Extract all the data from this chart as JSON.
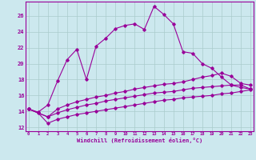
{
  "xlabel": "Windchill (Refroidissement éolien,°C)",
  "background_color": "#cce8ee",
  "grid_color": "#aacccc",
  "line_color": "#990099",
  "x_ticks": [
    0,
    1,
    2,
    3,
    4,
    5,
    6,
    7,
    8,
    9,
    10,
    11,
    12,
    13,
    14,
    15,
    16,
    17,
    18,
    19,
    20,
    21,
    22,
    23
  ],
  "ylim": [
    11.5,
    27.8
  ],
  "xlim": [
    -0.3,
    23.3
  ],
  "y_ticks": [
    12,
    14,
    16,
    18,
    20,
    22,
    24,
    26
  ],
  "line1_x": [
    0,
    1,
    2,
    3,
    4,
    5,
    6,
    7,
    8,
    9,
    10,
    11,
    12,
    13,
    14,
    15,
    16,
    17,
    18,
    19,
    20,
    21,
    22,
    23
  ],
  "line1_y": [
    14.3,
    13.9,
    14.8,
    17.8,
    20.5,
    21.8,
    18.0,
    22.2,
    23.2,
    24.4,
    24.8,
    25.0,
    24.3,
    27.2,
    26.2,
    25.0,
    21.5,
    21.3,
    20.0,
    19.4,
    18.3,
    17.3,
    17.3,
    16.8
  ],
  "line2_x": [
    0,
    2,
    3,
    4,
    5,
    6,
    7,
    8,
    9,
    10,
    11,
    12,
    13,
    14,
    15,
    16,
    17,
    18,
    19,
    20,
    21,
    22,
    23
  ],
  "line2_y": [
    14.3,
    13.3,
    14.3,
    14.8,
    15.2,
    15.5,
    15.8,
    16.0,
    16.3,
    16.5,
    16.8,
    17.0,
    17.2,
    17.4,
    17.5,
    17.7,
    18.0,
    18.3,
    18.5,
    18.8,
    18.4,
    17.5,
    17.3
  ],
  "line3_x": [
    0,
    2,
    3,
    4,
    5,
    6,
    7,
    8,
    9,
    10,
    11,
    12,
    13,
    14,
    15,
    16,
    17,
    18,
    19,
    20,
    21,
    22,
    23
  ],
  "line3_y": [
    14.3,
    13.3,
    13.8,
    14.2,
    14.5,
    14.8,
    15.0,
    15.3,
    15.5,
    15.7,
    15.9,
    16.1,
    16.3,
    16.4,
    16.5,
    16.7,
    16.9,
    17.0,
    17.1,
    17.2,
    17.3,
    17.0,
    16.8
  ],
  "line4_x": [
    0,
    1,
    2,
    3,
    4,
    5,
    6,
    7,
    8,
    9,
    10,
    11,
    12,
    13,
    14,
    15,
    16,
    17,
    18,
    19,
    20,
    21,
    22,
    23
  ],
  "line4_y": [
    14.3,
    13.8,
    12.5,
    13.0,
    13.3,
    13.6,
    13.8,
    14.0,
    14.2,
    14.4,
    14.6,
    14.8,
    15.0,
    15.2,
    15.4,
    15.5,
    15.7,
    15.8,
    15.9,
    16.0,
    16.2,
    16.3,
    16.5,
    16.7
  ]
}
